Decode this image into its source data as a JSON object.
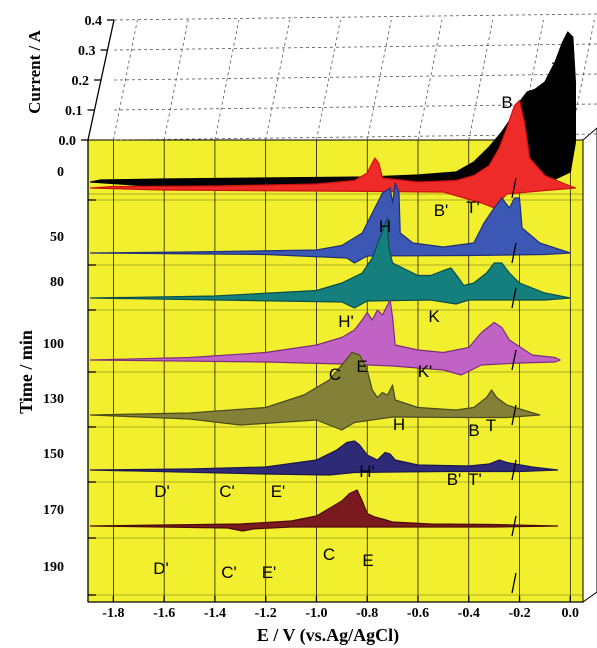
{
  "chart_data": {
    "type": "line",
    "title": "",
    "xlabel": "E / V (vs.Ag/AgCl)",
    "ylabel": "Time / min",
    "zlabel": "Current / A",
    "xlim": [
      -1.9,
      0.05
    ],
    "x_ticks": [
      "-1.8",
      "-1.6",
      "-1.4",
      "-1.2",
      "-1.0",
      "-0.8",
      "-0.6",
      "-0.4",
      "-0.2",
      "0.0"
    ],
    "y_ticks": [
      "0",
      "50",
      "80",
      "100",
      "130",
      "150",
      "170",
      "190"
    ],
    "z_ticks": [
      "0.4",
      "0.3",
      "0.2",
      "0.1",
      "0.0"
    ],
    "zlim": [
      0,
      0.4
    ],
    "grid": true,
    "back_wall_color": "#ffffff",
    "floor_color": "#f2ef2e",
    "series": [
      {
        "color": "#000000",
        "stroke": "#000000",
        "pts": [
          [
            -1.89,
            0
          ],
          [
            -1.85,
            0.004
          ],
          [
            -1.6,
            0.006
          ],
          [
            -1.2,
            0.008
          ],
          [
            -0.8,
            0.01
          ],
          [
            -0.6,
            0.014
          ],
          [
            -0.45,
            0.02
          ],
          [
            -0.38,
            0.04
          ],
          [
            -0.32,
            0.07
          ],
          [
            -0.27,
            0.1
          ],
          [
            -0.23,
            0.13
          ],
          [
            -0.2,
            0.16
          ],
          [
            -0.17,
            0.18
          ],
          [
            -0.14,
            0.185
          ],
          [
            -0.1,
            0.2
          ],
          [
            -0.06,
            0.24
          ],
          [
            -0.03,
            0.28
          ],
          [
            -0.01,
            0.3
          ],
          [
            0.01,
            0.29
          ],
          [
            0.02,
            0.2
          ],
          [
            0.02,
            0.08
          ],
          [
            0.0,
            0.02
          ],
          [
            -0.1,
            -0.004
          ],
          [
            -0.4,
            -0.01
          ],
          [
            -0.9,
            -0.012
          ],
          [
            -1.6,
            -0.01
          ],
          [
            -1.89,
            0
          ]
        ]
      },
      {
        "color": "#ef2b2a",
        "stroke": "#cc1111",
        "pts": [
          [
            -1.89,
            0
          ],
          [
            -1.8,
            0.003
          ],
          [
            -1.4,
            0.004
          ],
          [
            -1.0,
            0.008
          ],
          [
            -0.85,
            0.015
          ],
          [
            -0.8,
            0.03
          ],
          [
            -0.77,
            0.06
          ],
          [
            -0.755,
            0.05
          ],
          [
            -0.74,
            0.02
          ],
          [
            -0.6,
            0.012
          ],
          [
            -0.45,
            0.015
          ],
          [
            -0.38,
            0.025
          ],
          [
            -0.32,
            0.045
          ],
          [
            -0.28,
            0.08
          ],
          [
            -0.25,
            0.12
          ],
          [
            -0.22,
            0.165
          ],
          [
            -0.2,
            0.175
          ],
          [
            -0.18,
            0.13
          ],
          [
            -0.16,
            0.06
          ],
          [
            -0.1,
            0.025
          ],
          [
            -0.03,
            0.01
          ],
          [
            0.02,
            0
          ],
          [
            -0.1,
            -0.005
          ],
          [
            -0.25,
            -0.012
          ],
          [
            -0.3,
            -0.04
          ],
          [
            -0.35,
            -0.03
          ],
          [
            -0.5,
            -0.008
          ],
          [
            -1.0,
            -0.006
          ],
          [
            -1.6,
            -0.004
          ],
          [
            -1.89,
            0
          ]
        ]
      },
      {
        "color": "#3c58b4",
        "stroke": "#1f2f78",
        "pts": [
          [
            -1.89,
            0
          ],
          [
            -1.5,
            0.002
          ],
          [
            -1.0,
            0.006
          ],
          [
            -0.9,
            0.015
          ],
          [
            -0.82,
            0.04
          ],
          [
            -0.78,
            0.08
          ],
          [
            -0.74,
            0.12
          ],
          [
            -0.71,
            0.13
          ],
          [
            -0.7,
            0.1
          ],
          [
            -0.69,
            0.14
          ],
          [
            -0.675,
            0.12
          ],
          [
            -0.67,
            0.04
          ],
          [
            -0.62,
            0.02
          ],
          [
            -0.5,
            0.012
          ],
          [
            -0.38,
            0.02
          ],
          [
            -0.34,
            0.06
          ],
          [
            -0.3,
            0.09
          ],
          [
            -0.27,
            0.11
          ],
          [
            -0.24,
            0.09
          ],
          [
            -0.22,
            0.11
          ],
          [
            -0.2,
            0.11
          ],
          [
            -0.19,
            0.05
          ],
          [
            -0.12,
            0.02
          ],
          [
            0.0,
            0
          ],
          [
            -0.1,
            -0.003
          ],
          [
            -0.4,
            -0.005
          ],
          [
            -0.8,
            -0.006
          ],
          [
            -0.85,
            -0.02
          ],
          [
            -0.88,
            -0.01
          ],
          [
            -1.2,
            -0.003
          ],
          [
            -1.89,
            0
          ]
        ]
      },
      {
        "color": "#147f7c",
        "stroke": "#0a4d4b",
        "pts": [
          [
            -1.89,
            0
          ],
          [
            -1.4,
            0.004
          ],
          [
            -1.0,
            0.015
          ],
          [
            -0.9,
            0.03
          ],
          [
            -0.82,
            0.05
          ],
          [
            -0.78,
            0.08
          ],
          [
            -0.75,
            0.12
          ],
          [
            -0.72,
            0.16
          ],
          [
            -0.715,
            0.1
          ],
          [
            -0.7,
            0.07
          ],
          [
            -0.6,
            0.045
          ],
          [
            -0.55,
            0.045
          ],
          [
            -0.5,
            0.055
          ],
          [
            -0.47,
            0.06
          ],
          [
            -0.44,
            0.04
          ],
          [
            -0.42,
            0.025
          ],
          [
            -0.38,
            0.03
          ],
          [
            -0.33,
            0.05
          ],
          [
            -0.3,
            0.07
          ],
          [
            -0.27,
            0.07
          ],
          [
            -0.24,
            0.05
          ],
          [
            -0.2,
            0.03
          ],
          [
            -0.1,
            0.01
          ],
          [
            0.0,
            0
          ],
          [
            -0.1,
            -0.004
          ],
          [
            -0.4,
            -0.004
          ],
          [
            -0.45,
            -0.012
          ],
          [
            -0.55,
            -0.004
          ],
          [
            -0.8,
            -0.006
          ],
          [
            -0.85,
            -0.02
          ],
          [
            -0.9,
            -0.008
          ],
          [
            -1.89,
            0
          ]
        ]
      },
      {
        "color": "#c163c4",
        "stroke": "#7d2c80",
        "pts": [
          [
            -1.89,
            0
          ],
          [
            -1.5,
            0.005
          ],
          [
            -1.2,
            0.015
          ],
          [
            -1.0,
            0.03
          ],
          [
            -0.9,
            0.045
          ],
          [
            -0.85,
            0.06
          ],
          [
            -0.82,
            0.08
          ],
          [
            -0.8,
            0.095
          ],
          [
            -0.78,
            0.08
          ],
          [
            -0.76,
            0.1
          ],
          [
            -0.74,
            0.09
          ],
          [
            -0.72,
            0.11
          ],
          [
            -0.71,
            0.12
          ],
          [
            -0.7,
            0.085
          ],
          [
            -0.69,
            0.03
          ],
          [
            -0.6,
            0.02
          ],
          [
            -0.5,
            0.015
          ],
          [
            -0.4,
            0.025
          ],
          [
            -0.35,
            0.055
          ],
          [
            -0.3,
            0.075
          ],
          [
            -0.27,
            0.065
          ],
          [
            -0.24,
            0.04
          ],
          [
            -0.15,
            0.01
          ],
          [
            -0.06,
            0.005
          ],
          [
            -0.04,
            0
          ],
          [
            -0.06,
            -0.004
          ],
          [
            -0.2,
            -0.006
          ],
          [
            -0.35,
            -0.01
          ],
          [
            -0.43,
            -0.03
          ],
          [
            -0.5,
            -0.02
          ],
          [
            -0.7,
            -0.012
          ],
          [
            -0.9,
            -0.008
          ],
          [
            -1.2,
            -0.004
          ],
          [
            -1.89,
            0
          ]
        ]
      },
      {
        "color": "#838037",
        "stroke": "#4a4a1c",
        "pts": [
          [
            -1.89,
            0
          ],
          [
            -1.5,
            0.004
          ],
          [
            -1.2,
            0.015
          ],
          [
            -1.05,
            0.04
          ],
          [
            -0.95,
            0.07
          ],
          [
            -0.9,
            0.1
          ],
          [
            -0.86,
            0.125
          ],
          [
            -0.83,
            0.12
          ],
          [
            -0.8,
            0.09
          ],
          [
            -0.78,
            0.05
          ],
          [
            -0.76,
            0.035
          ],
          [
            -0.74,
            0.045
          ],
          [
            -0.72,
            0.04
          ],
          [
            -0.7,
            0.06
          ],
          [
            -0.69,
            0.03
          ],
          [
            -0.6,
            0.015
          ],
          [
            -0.45,
            0.01
          ],
          [
            -0.38,
            0.015
          ],
          [
            -0.33,
            0.035
          ],
          [
            -0.31,
            0.05
          ],
          [
            -0.29,
            0.035
          ],
          [
            -0.25,
            0.02
          ],
          [
            -0.12,
            0
          ],
          [
            -0.25,
            -0.005
          ],
          [
            -0.4,
            -0.005
          ],
          [
            -0.7,
            -0.004
          ],
          [
            -0.85,
            -0.015
          ],
          [
            -0.9,
            -0.03
          ],
          [
            -1.0,
            -0.01
          ],
          [
            -1.3,
            -0.02
          ],
          [
            -1.5,
            -0.008
          ],
          [
            -1.89,
            0
          ]
        ]
      },
      {
        "color": "#2f2a78",
        "stroke": "#1a1650",
        "pts": [
          [
            -1.89,
            0
          ],
          [
            -1.5,
            0.002
          ],
          [
            -1.2,
            0.006
          ],
          [
            -1.0,
            0.02
          ],
          [
            -0.92,
            0.04
          ],
          [
            -0.88,
            0.055
          ],
          [
            -0.85,
            0.058
          ],
          [
            -0.83,
            0.05
          ],
          [
            -0.8,
            0.03
          ],
          [
            -0.76,
            0.02
          ],
          [
            -0.73,
            0.035
          ],
          [
            -0.71,
            0.032
          ],
          [
            -0.69,
            0.02
          ],
          [
            -0.6,
            0.01
          ],
          [
            -0.4,
            0.008
          ],
          [
            -0.32,
            0.012
          ],
          [
            -0.28,
            0.02
          ],
          [
            -0.25,
            0.015
          ],
          [
            -0.15,
            0.006
          ],
          [
            -0.05,
            0
          ],
          [
            -0.2,
            -0.003
          ],
          [
            -0.5,
            -0.003
          ],
          [
            -0.85,
            -0.005
          ],
          [
            -0.95,
            -0.01
          ],
          [
            -1.2,
            -0.008
          ],
          [
            -1.89,
            0
          ]
        ]
      },
      {
        "color": "#7a1a1e",
        "stroke": "#4a0a0c",
        "pts": [
          [
            -1.89,
            0
          ],
          [
            -1.6,
            0.002
          ],
          [
            -1.3,
            0.004
          ],
          [
            -1.1,
            0.01
          ],
          [
            -1.0,
            0.02
          ],
          [
            -0.95,
            0.035
          ],
          [
            -0.9,
            0.05
          ],
          [
            -0.87,
            0.065
          ],
          [
            -0.84,
            0.072
          ],
          [
            -0.82,
            0.05
          ],
          [
            -0.8,
            0.025
          ],
          [
            -0.77,
            0.018
          ],
          [
            -0.74,
            0.014
          ],
          [
            -0.7,
            0.008
          ],
          [
            -0.55,
            0.004
          ],
          [
            -0.3,
            0.003
          ],
          [
            -0.05,
            0
          ],
          [
            -0.3,
            -0.002
          ],
          [
            -0.8,
            -0.002
          ],
          [
            -1.1,
            -0.002
          ],
          [
            -1.25,
            -0.006
          ],
          [
            -1.29,
            -0.01
          ],
          [
            -1.35,
            -0.004
          ],
          [
            -1.89,
            0
          ]
        ]
      }
    ],
    "annotations": [
      "T",
      "B",
      "B'",
      "T'",
      "H",
      "H'",
      "K",
      "K'",
      "C",
      "E",
      "H",
      "B",
      "T",
      "H'",
      "B'",
      "T'",
      "D'",
      "C'",
      "E'",
      "C",
      "E",
      "D'",
      "C'",
      "E'"
    ]
  }
}
